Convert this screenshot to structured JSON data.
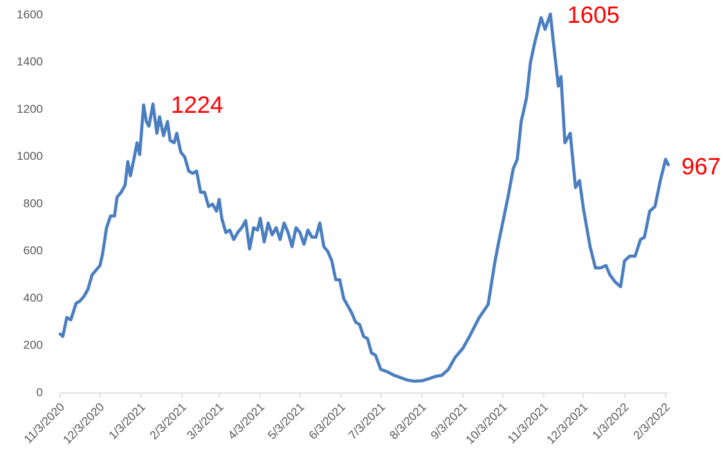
{
  "chart_data": {
    "type": "line",
    "x": [
      "11/3/2020",
      "11/5/2020",
      "11/8/2020",
      "11/11/2020",
      "11/15/2020",
      "11/18/2020",
      "11/21/2020",
      "11/24/2020",
      "11/27/2020",
      "11/30/2020",
      "12/3/2020",
      "12/5/2020",
      "12/8/2020",
      "12/11/2020",
      "12/14/2020",
      "12/16/2020",
      "12/19/2020",
      "12/22/2020",
      "12/24/2020",
      "12/26/2020",
      "12/29/2020",
      "12/31/2020",
      "1/2/2021",
      "1/5/2021",
      "1/7/2021",
      "1/9/2021",
      "1/12/2021",
      "1/15/2021",
      "1/17/2021",
      "1/20/2021",
      "1/23/2021",
      "1/25/2021",
      "1/28/2021",
      "1/30/2021",
      "2/2/2021",
      "2/5/2021",
      "2/8/2021",
      "2/11/2021",
      "2/14/2021",
      "2/17/2021",
      "2/20/2021",
      "2/23/2021",
      "2/26/2021",
      "3/1/2021",
      "3/3/2021",
      "3/5/2021",
      "3/8/2021",
      "3/11/2021",
      "3/14/2021",
      "3/17/2021",
      "3/20/2021",
      "3/23/2021",
      "3/26/2021",
      "3/29/2021",
      "4/1/2021",
      "4/3/2021",
      "4/6/2021",
      "4/9/2021",
      "4/12/2021",
      "4/15/2021",
      "4/18/2021",
      "4/21/2021",
      "4/24/2021",
      "4/27/2021",
      "4/30/2021",
      "5/3/2021",
      "5/6/2021",
      "5/9/2021",
      "5/12/2021",
      "5/15/2021",
      "5/18/2021",
      "5/21/2021",
      "5/24/2021",
      "5/27/2021",
      "5/30/2021",
      "6/2/2021",
      "6/5/2021",
      "6/8/2021",
      "6/11/2021",
      "6/14/2021",
      "6/17/2021",
      "6/20/2021",
      "6/23/2021",
      "6/26/2021",
      "6/29/2021",
      "7/3/2021",
      "7/8/2021",
      "7/13/2021",
      "7/18/2021",
      "7/23/2021",
      "7/28/2021",
      "8/3/2021",
      "8/8/2021",
      "8/13/2021",
      "8/18/2021",
      "8/23/2021",
      "8/28/2021",
      "9/3/2021",
      "9/8/2021",
      "9/15/2021",
      "9/22/2021",
      "9/27/2021",
      "9/30/2021",
      "10/3/2021",
      "10/7/2021",
      "10/11/2021",
      "10/14/2021",
      "10/17/2021",
      "10/21/2021",
      "10/24/2021",
      "10/27/2021",
      "11/1/2021",
      "11/4/2021",
      "11/8/2021",
      "11/10/2021",
      "11/14/2021",
      "11/16/2021",
      "11/19/2021",
      "11/23/2021",
      "11/27/2021",
      "11/30/2021",
      "12/3/2021",
      "12/8/2021",
      "12/12/2021",
      "12/16/2021",
      "12/20/2021",
      "12/23/2021",
      "12/27/2021",
      "12/31/2021",
      "1/3/2022",
      "1/7/2022",
      "1/11/2022",
      "1/15/2022",
      "1/18/2022",
      "1/22/2022",
      "1/26/2022",
      "1/30/2022",
      "2/3/2022",
      "2/5/2022"
    ],
    "series": [
      {
        "color": "#4a7ec0",
        "values": [
          250,
          240,
          320,
          310,
          380,
          390,
          410,
          440,
          500,
          520,
          540,
          590,
          700,
          750,
          750,
          830,
          850,
          880,
          980,
          920,
          1000,
          1060,
          1010,
          1220,
          1150,
          1130,
          1224,
          1100,
          1170,
          1090,
          1150,
          1070,
          1060,
          1100,
          1020,
          1000,
          940,
          930,
          940,
          850,
          850,
          790,
          800,
          770,
          820,
          740,
          680,
          690,
          650,
          680,
          700,
          730,
          610,
          700,
          690,
          740,
          640,
          720,
          670,
          700,
          650,
          720,
          680,
          620,
          700,
          680,
          630,
          690,
          660,
          660,
          720,
          620,
          600,
          560,
          480,
          480,
          400,
          370,
          340,
          300,
          290,
          240,
          230,
          170,
          160,
          100,
          90,
          75,
          65,
          55,
          50,
          52,
          60,
          70,
          75,
          100,
          150,
          190,
          240,
          317,
          375,
          550,
          640,
          720,
          830,
          950,
          990,
          1150,
          1250,
          1400,
          1480,
          1590,
          1540,
          1605,
          1500,
          1300,
          1340,
          1060,
          1100,
          870,
          900,
          780,
          620,
          530,
          530,
          540,
          500,
          470,
          450,
          560,
          580,
          580,
          650,
          660,
          770,
          790,
          900,
          990,
          967
        ]
      }
    ],
    "xlim": [
      "11/3/2020",
      "2/5/2022"
    ],
    "xticks": [
      "11/3/2020",
      "12/3/2020",
      "1/3/2021",
      "2/3/2021",
      "3/3/2021",
      "4/3/2021",
      "5/3/2021",
      "6/3/2021",
      "7/3/2021",
      "8/3/2021",
      "9/3/2021",
      "10/3/2021",
      "11/3/2021",
      "12/3/2021",
      "1/3/2022",
      "2/3/2022"
    ],
    "ylim": [
      0,
      1600
    ],
    "yticks": [
      0,
      200,
      400,
      600,
      800,
      1000,
      1200,
      1400,
      1600
    ],
    "annotations": [
      "1224",
      "1605",
      "967"
    ],
    "annotation_color": "#ff0000"
  }
}
